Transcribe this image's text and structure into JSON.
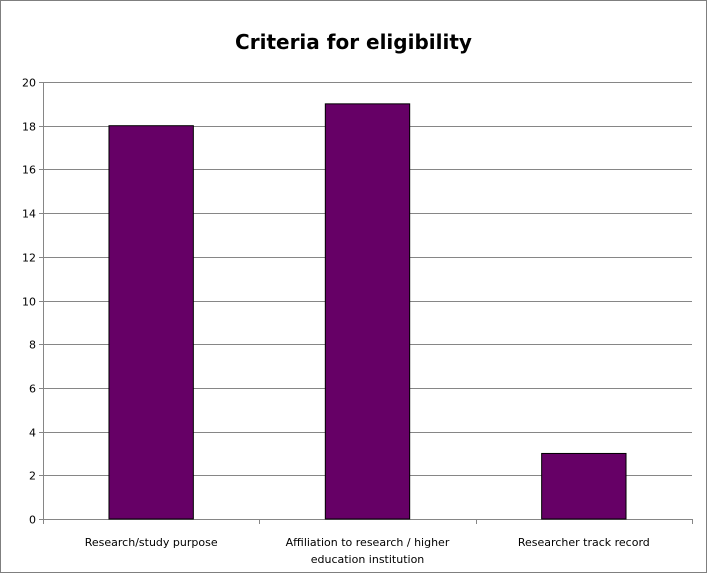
{
  "chart_data": {
    "type": "bar",
    "title": "Criteria for eligibility",
    "categories": [
      [
        "Research/study purpose"
      ],
      [
        "Affiliation to research / higher",
        "education institution"
      ],
      [
        "Researcher track record"
      ]
    ],
    "values": [
      18,
      19,
      3
    ],
    "ylim": [
      0,
      20
    ],
    "yticks": [
      0,
      2,
      4,
      6,
      8,
      10,
      12,
      14,
      16,
      18,
      20
    ],
    "grid": true,
    "bar_color": "#660066",
    "xlabel": "",
    "ylabel": ""
  }
}
